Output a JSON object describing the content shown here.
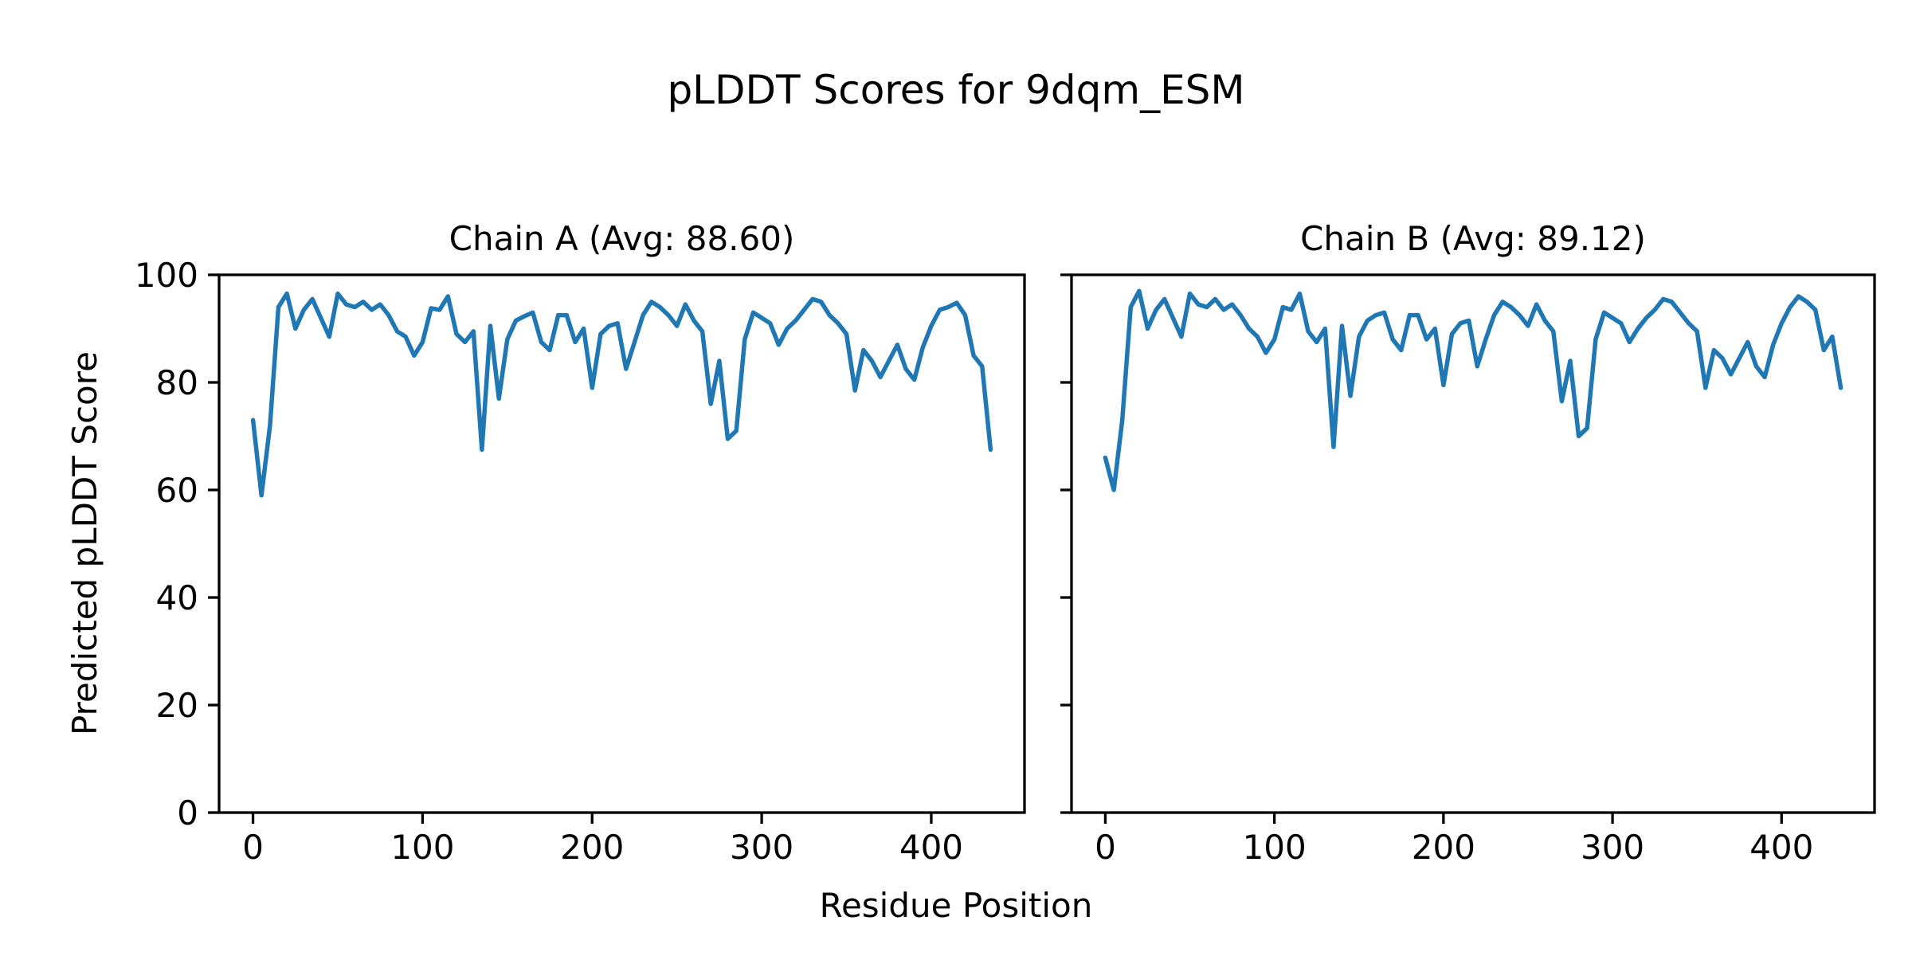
{
  "chart_data": {
    "type": "line",
    "title": "pLDDT Scores for 9dqm_ESM",
    "xlabel": "Residue Position",
    "ylabel": "Predicted pLDDT Score",
    "line_color": "#1f77b4",
    "background_color": "#ffffff",
    "text_color": "#000000",
    "grid": false,
    "legend": "none",
    "xlim": [
      -20,
      455
    ],
    "ylim": [
      0,
      100
    ],
    "xticks": [
      0,
      100,
      200,
      300,
      400
    ],
    "yticks": [
      0,
      20,
      40,
      60,
      80,
      100
    ],
    "x": [
      0,
      5,
      10,
      15,
      20,
      25,
      30,
      35,
      40,
      45,
      50,
      55,
      60,
      65,
      70,
      75,
      80,
      85,
      90,
      95,
      100,
      105,
      110,
      115,
      120,
      125,
      130,
      135,
      140,
      145,
      150,
      155,
      160,
      165,
      170,
      175,
      180,
      185,
      190,
      195,
      200,
      205,
      210,
      215,
      220,
      225,
      230,
      235,
      240,
      245,
      250,
      255,
      260,
      265,
      270,
      275,
      280,
      285,
      290,
      295,
      300,
      305,
      310,
      315,
      320,
      325,
      330,
      335,
      340,
      345,
      350,
      355,
      360,
      365,
      370,
      375,
      380,
      385,
      390,
      395,
      400,
      405,
      410,
      415,
      420,
      425,
      430,
      435
    ],
    "panels": [
      {
        "title": "Chain A (Avg: 88.60)",
        "series_name": "Chain A",
        "avg": 88.6,
        "values": [
          73,
          59,
          72,
          94,
          96.5,
          90,
          93.5,
          95.5,
          92,
          88.5,
          96.5,
          94.5,
          94,
          95,
          93.5,
          94.5,
          92.5,
          89.5,
          88.5,
          85,
          87.5,
          93.8,
          93.5,
          96,
          89,
          87.5,
          89.5,
          67.5,
          90.5,
          77,
          88,
          91.5,
          92.3,
          93,
          87.5,
          86,
          92.5,
          92.5,
          87.5,
          90,
          79,
          89,
          90.5,
          91,
          82.5,
          87.5,
          92.5,
          95,
          94,
          92.5,
          90.5,
          94.5,
          91.5,
          89.5,
          76,
          84,
          69.5,
          71,
          88,
          93,
          92,
          91,
          87,
          90,
          91.5,
          93.5,
          95.5,
          95,
          92.5,
          91,
          89,
          78.5,
          86,
          84,
          81,
          84,
          87,
          82.5,
          80.5,
          86.5,
          90.5,
          93.5,
          94,
          94.8,
          92.5,
          85,
          83,
          67.5
        ]
      },
      {
        "title": "Chain B (Avg: 89.12)",
        "series_name": "Chain B",
        "avg": 89.12,
        "values": [
          66,
          60,
          73,
          94,
          97,
          90,
          93.5,
          95.5,
          92,
          88.5,
          96.5,
          94.5,
          94,
          95.5,
          93.5,
          94.5,
          92.5,
          90,
          88.5,
          85.5,
          88,
          94,
          93.5,
          96.5,
          89.5,
          87.5,
          90,
          68,
          90.5,
          77.5,
          88.5,
          91.5,
          92.5,
          93,
          88,
          86,
          92.5,
          92.5,
          88,
          90,
          79.5,
          89,
          91,
          91.5,
          83,
          88,
          92.5,
          95,
          94,
          92.5,
          90.5,
          94.5,
          91.5,
          89.5,
          76.5,
          84,
          70,
          71.5,
          88,
          93,
          92,
          91,
          87.5,
          90,
          92,
          93.5,
          95.5,
          95,
          93,
          91,
          89.5,
          79,
          86,
          84.5,
          81.5,
          84.5,
          87.5,
          83,
          81,
          87,
          91,
          94,
          96,
          95,
          93.5,
          86,
          88.5,
          79
        ]
      }
    ]
  }
}
